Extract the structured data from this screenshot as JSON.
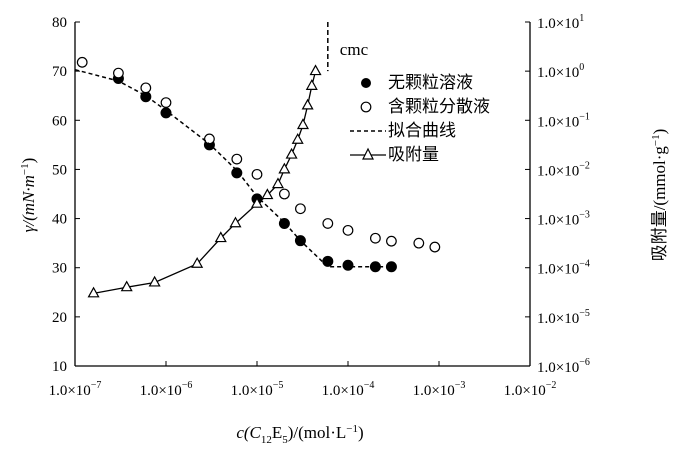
{
  "chart_data": {
    "type": "scatter",
    "x_axis": {
      "label_main": "c(C",
      "label_sub1": "12",
      "label_mid": "E",
      "label_sub2": "5",
      "label_tail": ")/(mol·L",
      "label_sup": "−1",
      "label_end": ")",
      "scale": "log",
      "range": [
        1e-07,
        0.01
      ],
      "ticks": [
        {
          "value": 1e-07,
          "base": "1.0×10",
          "exp": "−7"
        },
        {
          "value": 1e-06,
          "base": "1.0×10",
          "exp": "−6"
        },
        {
          "value": 1e-05,
          "base": "1.0×10",
          "exp": "−5"
        },
        {
          "value": 0.0001,
          "base": "1.0×10",
          "exp": "−4"
        },
        {
          "value": 0.001,
          "base": "1.0×10",
          "exp": "−3"
        },
        {
          "value": 0.01,
          "base": "1.0×10",
          "exp": "−2"
        }
      ]
    },
    "y_left": {
      "label": "γ/(mN·m",
      "label_sup": "−1",
      "label_end": ")",
      "range": [
        10,
        80
      ],
      "ticks": [
        10,
        20,
        30,
        40,
        50,
        60,
        70,
        80
      ]
    },
    "y_right": {
      "label": "吸附量/(mmol·g",
      "label_sup": "−1",
      "label_end": ")",
      "scale": "log",
      "range": [
        1e-06,
        10
      ],
      "ticks": [
        {
          "value": 1e-06,
          "base": "1.0×10",
          "exp": "−6"
        },
        {
          "value": 1e-05,
          "base": "1.0×10",
          "exp": "−5"
        },
        {
          "value": 0.0001,
          "base": "1.0×10",
          "exp": "−4"
        },
        {
          "value": 0.001,
          "base": "1.0×10",
          "exp": "−3"
        },
        {
          "value": 0.01,
          "base": "1.0×10",
          "exp": "−2"
        },
        {
          "value": 0.1,
          "base": "1.0×10",
          "exp": "−1"
        },
        {
          "value": 1,
          "base": "1.0×10",
          "exp": "0"
        },
        {
          "value": 10,
          "base": "1.0×10",
          "exp": "1"
        }
      ]
    },
    "annotation": {
      "text": "cmc",
      "x": 6e-05
    },
    "legend": {
      "placement": "right",
      "entries": [
        "无颗粒溶液",
        "含颗粒分散液",
        "拟合曲线",
        "吸附量"
      ]
    },
    "series": [
      {
        "name": "无颗粒溶液",
        "axis": "left",
        "marker": "filled-circle",
        "x": [
          3e-07,
          6e-07,
          1e-06,
          3e-06,
          6e-06,
          1e-05,
          2e-05,
          3e-05,
          6e-05,
          0.0001,
          0.0002,
          0.0003
        ],
        "y": [
          68.5,
          64.8,
          61.5,
          55,
          49.3,
          44,
          39,
          35.5,
          31.3,
          30.5,
          30.2,
          30.2
        ]
      },
      {
        "name": "含颗粒分散液",
        "axis": "left",
        "marker": "open-circle",
        "x": [
          1.2e-07,
          3e-07,
          6e-07,
          1e-06,
          3e-06,
          6e-06,
          1e-05,
          2e-05,
          3e-05,
          6e-05,
          0.0001,
          0.0002,
          0.0003,
          0.0006,
          0.0009
        ],
        "y": [
          71.8,
          69.6,
          66.6,
          63.6,
          56.2,
          52.1,
          49,
          45,
          42,
          39,
          37.6,
          36,
          35.4,
          35,
          34.2
        ]
      },
      {
        "name": "拟合曲线",
        "axis": "left",
        "style": "dashed",
        "x": [
          1e-07,
          3e-07,
          6e-07,
          1e-06,
          3e-06,
          6e-06,
          1e-05,
          2e-05,
          3e-05,
          6e-05,
          0.0001,
          0.0003
        ],
        "y": [
          70.3,
          68,
          65,
          62,
          55.2,
          49.8,
          44.5,
          39.2,
          35.5,
          30.2,
          30.2,
          30.2
        ]
      },
      {
        "name": "吸附量",
        "axis": "right",
        "marker": "open-triangle",
        "x": [
          1.6e-07,
          3.7e-07,
          7.5e-07,
          2.2e-06,
          4e-06,
          5.8e-06,
          1e-05,
          1.3e-05,
          1.7e-05,
          2e-05,
          2.4e-05,
          2.8e-05,
          3.2e-05,
          3.6e-05,
          4e-05,
          4.4e-05
        ],
        "y": [
          3e-05,
          4e-05,
          5e-05,
          0.00012,
          0.0004,
          0.0008,
          0.002,
          0.003,
          0.005,
          0.01,
          0.02,
          0.04,
          0.08,
          0.2,
          0.5,
          1
        ]
      }
    ]
  }
}
